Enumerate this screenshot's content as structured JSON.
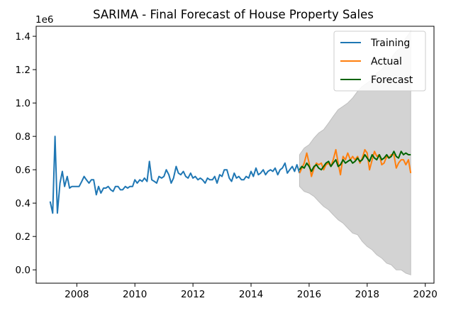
{
  "chart_data": {
    "type": "line",
    "title": "SARIMA - Final Forecast of House Property Sales",
    "y_offset_label": "1e6",
    "xlim": [
      2006.6,
      2020.3
    ],
    "ylim": [
      -0.08,
      1.46
    ],
    "x_ticks": [
      2008,
      2010,
      2012,
      2014,
      2016,
      2018,
      2020
    ],
    "x_tick_labels": [
      "2008",
      "2010",
      "2012",
      "2014",
      "2016",
      "2018",
      "2020"
    ],
    "y_ticks": [
      0.0,
      0.2,
      0.4,
      0.6,
      0.8,
      1.0,
      1.2,
      1.4
    ],
    "y_tick_labels": [
      "0.0",
      "0.2",
      "0.4",
      "0.6",
      "0.8",
      "1.0",
      "1.2",
      "1.4"
    ],
    "grid": false,
    "legend_position": "top-right",
    "series": [
      {
        "name": "Training",
        "color": "#1f77b4",
        "points": [
          [
            2007.08,
            0.41
          ],
          [
            2007.17,
            0.34
          ],
          [
            2007.25,
            0.8
          ],
          [
            2007.33,
            0.34
          ],
          [
            2007.42,
            0.52
          ],
          [
            2007.5,
            0.59
          ],
          [
            2007.58,
            0.5
          ],
          [
            2007.67,
            0.56
          ],
          [
            2007.75,
            0.49
          ],
          [
            2007.83,
            0.5
          ],
          [
            2007.92,
            0.5
          ],
          [
            2008.0,
            0.5
          ],
          [
            2008.08,
            0.5
          ],
          [
            2008.17,
            0.53
          ],
          [
            2008.25,
            0.56
          ],
          [
            2008.33,
            0.54
          ],
          [
            2008.42,
            0.52
          ],
          [
            2008.5,
            0.54
          ],
          [
            2008.58,
            0.54
          ],
          [
            2008.67,
            0.45
          ],
          [
            2008.75,
            0.5
          ],
          [
            2008.83,
            0.46
          ],
          [
            2008.92,
            0.49
          ],
          [
            2009.0,
            0.49
          ],
          [
            2009.08,
            0.5
          ],
          [
            2009.17,
            0.48
          ],
          [
            2009.25,
            0.47
          ],
          [
            2009.33,
            0.5
          ],
          [
            2009.42,
            0.5
          ],
          [
            2009.5,
            0.48
          ],
          [
            2009.58,
            0.48
          ],
          [
            2009.67,
            0.5
          ],
          [
            2009.75,
            0.49
          ],
          [
            2009.83,
            0.5
          ],
          [
            2009.92,
            0.5
          ],
          [
            2010.0,
            0.54
          ],
          [
            2010.08,
            0.52
          ],
          [
            2010.17,
            0.54
          ],
          [
            2010.25,
            0.53
          ],
          [
            2010.33,
            0.55
          ],
          [
            2010.42,
            0.53
          ],
          [
            2010.5,
            0.65
          ],
          [
            2010.58,
            0.54
          ],
          [
            2010.67,
            0.53
          ],
          [
            2010.75,
            0.52
          ],
          [
            2010.83,
            0.56
          ],
          [
            2010.92,
            0.55
          ],
          [
            2011.0,
            0.56
          ],
          [
            2011.08,
            0.6
          ],
          [
            2011.17,
            0.57
          ],
          [
            2011.25,
            0.52
          ],
          [
            2011.33,
            0.55
          ],
          [
            2011.42,
            0.62
          ],
          [
            2011.5,
            0.58
          ],
          [
            2011.58,
            0.57
          ],
          [
            2011.67,
            0.59
          ],
          [
            2011.75,
            0.56
          ],
          [
            2011.83,
            0.55
          ],
          [
            2011.92,
            0.58
          ],
          [
            2012.0,
            0.55
          ],
          [
            2012.08,
            0.56
          ],
          [
            2012.17,
            0.54
          ],
          [
            2012.25,
            0.55
          ],
          [
            2012.33,
            0.54
          ],
          [
            2012.42,
            0.52
          ],
          [
            2012.5,
            0.55
          ],
          [
            2012.58,
            0.54
          ],
          [
            2012.67,
            0.54
          ],
          [
            2012.75,
            0.56
          ],
          [
            2012.83,
            0.52
          ],
          [
            2012.92,
            0.57
          ],
          [
            2013.0,
            0.56
          ],
          [
            2013.08,
            0.6
          ],
          [
            2013.17,
            0.6
          ],
          [
            2013.25,
            0.55
          ],
          [
            2013.33,
            0.53
          ],
          [
            2013.42,
            0.58
          ],
          [
            2013.5,
            0.55
          ],
          [
            2013.58,
            0.56
          ],
          [
            2013.67,
            0.54
          ],
          [
            2013.75,
            0.54
          ],
          [
            2013.83,
            0.56
          ],
          [
            2013.92,
            0.55
          ],
          [
            2014.0,
            0.59
          ],
          [
            2014.08,
            0.56
          ],
          [
            2014.17,
            0.61
          ],
          [
            2014.25,
            0.57
          ],
          [
            2014.33,
            0.58
          ],
          [
            2014.42,
            0.6
          ],
          [
            2014.5,
            0.57
          ],
          [
            2014.58,
            0.59
          ],
          [
            2014.67,
            0.6
          ],
          [
            2014.75,
            0.59
          ],
          [
            2014.83,
            0.61
          ],
          [
            2014.92,
            0.57
          ],
          [
            2015.0,
            0.6
          ],
          [
            2015.08,
            0.61
          ],
          [
            2015.17,
            0.64
          ],
          [
            2015.25,
            0.58
          ],
          [
            2015.33,
            0.6
          ],
          [
            2015.42,
            0.62
          ],
          [
            2015.5,
            0.59
          ],
          [
            2015.58,
            0.63
          ],
          [
            2015.67,
            0.58
          ]
        ]
      },
      {
        "name": "Actual",
        "color": "#ff7f0e",
        "points": [
          [
            2015.67,
            0.58
          ],
          [
            2015.75,
            0.61
          ],
          [
            2015.83,
            0.64
          ],
          [
            2015.92,
            0.7
          ],
          [
            2016.0,
            0.64
          ],
          [
            2016.08,
            0.56
          ],
          [
            2016.17,
            0.61
          ],
          [
            2016.25,
            0.64
          ],
          [
            2016.33,
            0.63
          ],
          [
            2016.42,
            0.64
          ],
          [
            2016.5,
            0.6
          ],
          [
            2016.58,
            0.63
          ],
          [
            2016.67,
            0.64
          ],
          [
            2016.75,
            0.62
          ],
          [
            2016.83,
            0.66
          ],
          [
            2016.92,
            0.72
          ],
          [
            2017.0,
            0.64
          ],
          [
            2017.08,
            0.57
          ],
          [
            2017.17,
            0.68
          ],
          [
            2017.25,
            0.66
          ],
          [
            2017.33,
            0.7
          ],
          [
            2017.42,
            0.66
          ],
          [
            2017.5,
            0.68
          ],
          [
            2017.58,
            0.66
          ],
          [
            2017.67,
            0.68
          ],
          [
            2017.75,
            0.64
          ],
          [
            2017.83,
            0.67
          ],
          [
            2017.92,
            0.72
          ],
          [
            2018.0,
            0.7
          ],
          [
            2018.08,
            0.6
          ],
          [
            2018.17,
            0.66
          ],
          [
            2018.25,
            0.71
          ],
          [
            2018.33,
            0.68
          ],
          [
            2018.42,
            0.69
          ],
          [
            2018.5,
            0.63
          ],
          [
            2018.58,
            0.64
          ],
          [
            2018.67,
            0.68
          ],
          [
            2018.75,
            0.67
          ],
          [
            2018.83,
            0.69
          ],
          [
            2018.92,
            0.69
          ],
          [
            2019.0,
            0.61
          ],
          [
            2019.08,
            0.64
          ],
          [
            2019.17,
            0.66
          ],
          [
            2019.25,
            0.66
          ],
          [
            2019.33,
            0.63
          ],
          [
            2019.42,
            0.66
          ],
          [
            2019.5,
            0.58
          ]
        ]
      },
      {
        "name": "Forecast",
        "color": "#006400",
        "points": [
          [
            2015.67,
            0.6
          ],
          [
            2015.75,
            0.62
          ],
          [
            2015.83,
            0.61
          ],
          [
            2015.92,
            0.64
          ],
          [
            2016.0,
            0.62
          ],
          [
            2016.08,
            0.59
          ],
          [
            2016.17,
            0.62
          ],
          [
            2016.25,
            0.63
          ],
          [
            2016.33,
            0.61
          ],
          [
            2016.42,
            0.6
          ],
          [
            2016.5,
            0.62
          ],
          [
            2016.58,
            0.64
          ],
          [
            2016.67,
            0.65
          ],
          [
            2016.75,
            0.62
          ],
          [
            2016.83,
            0.64
          ],
          [
            2016.92,
            0.66
          ],
          [
            2017.0,
            0.62
          ],
          [
            2017.08,
            0.63
          ],
          [
            2017.17,
            0.66
          ],
          [
            2017.25,
            0.64
          ],
          [
            2017.33,
            0.65
          ],
          [
            2017.42,
            0.66
          ],
          [
            2017.5,
            0.64
          ],
          [
            2017.58,
            0.65
          ],
          [
            2017.67,
            0.67
          ],
          [
            2017.75,
            0.65
          ],
          [
            2017.83,
            0.66
          ],
          [
            2017.92,
            0.69
          ],
          [
            2018.0,
            0.67
          ],
          [
            2018.08,
            0.65
          ],
          [
            2018.17,
            0.69
          ],
          [
            2018.25,
            0.67
          ],
          [
            2018.33,
            0.66
          ],
          [
            2018.42,
            0.69
          ],
          [
            2018.5,
            0.66
          ],
          [
            2018.58,
            0.67
          ],
          [
            2018.67,
            0.69
          ],
          [
            2018.75,
            0.67
          ],
          [
            2018.83,
            0.68
          ],
          [
            2018.92,
            0.71
          ],
          [
            2019.0,
            0.68
          ],
          [
            2019.08,
            0.67
          ],
          [
            2019.17,
            0.71
          ],
          [
            2019.25,
            0.69
          ],
          [
            2019.33,
            0.7
          ],
          [
            2019.42,
            0.69
          ],
          [
            2019.5,
            0.69
          ]
        ]
      }
    ],
    "confidence_band": {
      "color": "#d3d3d3",
      "edge_color": "#bfbfbf",
      "x": [
        2015.67,
        2015.83,
        2016.0,
        2016.17,
        2016.33,
        2016.5,
        2016.67,
        2016.83,
        2017.0,
        2017.17,
        2017.33,
        2017.5,
        2017.67,
        2017.83,
        2018.0,
        2018.17,
        2018.33,
        2018.5,
        2018.67,
        2018.83,
        2019.0,
        2019.17,
        2019.33,
        2019.5
      ],
      "upper": [
        0.69,
        0.73,
        0.75,
        0.79,
        0.82,
        0.84,
        0.88,
        0.92,
        0.96,
        0.98,
        1.0,
        1.03,
        1.07,
        1.1,
        1.12,
        1.14,
        1.18,
        1.2,
        1.24,
        1.27,
        1.31,
        1.33,
        1.39,
        1.43
      ],
      "lower": [
        0.5,
        0.47,
        0.46,
        0.44,
        0.41,
        0.38,
        0.36,
        0.33,
        0.3,
        0.28,
        0.25,
        0.22,
        0.21,
        0.17,
        0.14,
        0.12,
        0.09,
        0.07,
        0.04,
        0.03,
        0.0,
        0.0,
        -0.02,
        -0.03
      ]
    }
  }
}
